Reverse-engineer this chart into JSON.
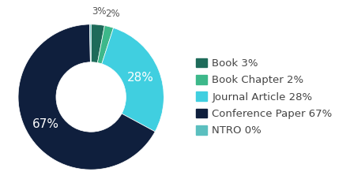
{
  "labels": [
    "Book",
    "Book Chapter",
    "Journal Article",
    "Conference Paper",
    "NTRO"
  ],
  "values": [
    3,
    2,
    28,
    67,
    0.3
  ],
  "colors": [
    "#1e6b5a",
    "#3db88a",
    "#40cfe0",
    "#0f1f3d",
    "#5bbfbf"
  ],
  "pct_labels_inner": [
    "",
    "",
    "28%",
    "67%",
    ""
  ],
  "pct_labels_outer": [
    "3%",
    "2%",
    "",
    "",
    ""
  ],
  "legend_labels": [
    "Book 3%",
    "Book Chapter 2%",
    "Journal Article 28%",
    "Conference Paper 67%",
    "NTRO 0%"
  ],
  "legend_colors": [
    "#1e6b5a",
    "#3db88a",
    "#40cfe0",
    "#0f1f3d",
    "#5bbfbf"
  ],
  "inner_label_fontsize": 11,
  "outer_label_fontsize": 8.5,
  "legend_fontsize": 9.5,
  "bg_color": "#ffffff",
  "donut_width": 0.52
}
